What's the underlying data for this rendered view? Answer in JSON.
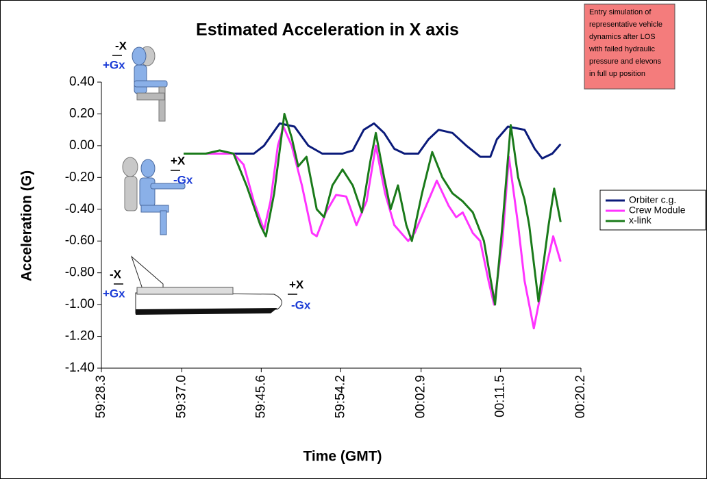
{
  "chart_data": {
    "type": "line",
    "title": "Estimated Acceleration in X axis",
    "x_label": "Time (GMT)",
    "y_label": "Acceleration (G)",
    "note": [
      "Entry simulation of",
      "representative vehicle",
      "dynamics after LOS",
      "with failed hydraulic",
      "pressure and elevons",
      "in full up position"
    ],
    "annotations": [
      "-X",
      "+Gx",
      "+X",
      "-Gx",
      "-X",
      "+Gx",
      "+X",
      "-Gx"
    ],
    "xlim": [
      "59:28.3",
      "00:20.2"
    ],
    "xticks": [
      "59:28.3",
      "59:37.0",
      "59:45.6",
      "59:54.2",
      "00:02.9",
      "00:11.5",
      "00:20.2"
    ],
    "ylim": [
      -1.4,
      0.4
    ],
    "yticks": [
      {
        "value": 0.4,
        "label": "0.40"
      },
      {
        "value": 0.2,
        "label": "0.20"
      },
      {
        "value": 0,
        "label": "0.00"
      },
      {
        "value": -0.2,
        "label": "-0.20"
      },
      {
        "value": -0.4,
        "label": "-0.40"
      },
      {
        "value": -0.6,
        "label": "-0.60"
      },
      {
        "value": -0.8,
        "label": "-0.80"
      },
      {
        "value": -1.0,
        "label": "-1.00"
      },
      {
        "value": -1.2,
        "label": "-1.20"
      },
      {
        "value": -1.4,
        "label": "-1.40"
      }
    ],
    "grid": false,
    "legend": "right",
    "series": [
      {
        "name": "Orbiter c.g.",
        "color": "#0a1a7a",
        "x": [
          "59:37.2",
          "59:44.8",
          "59:45.9",
          "59:47.6",
          "59:49.2",
          "59:50.7",
          "59:52.2",
          "59:54.4",
          "59:55.5",
          "59:56.7",
          "59:57.8",
          "59:58.9",
          "00:00.0",
          "00:01.1",
          "00:02.6",
          "00:03.7",
          "00:04.8",
          "00:06.3",
          "00:07.8",
          "00:09.3",
          "00:10.4",
          "00:11.1",
          "00:12.3",
          "00:14.1",
          "00:15.2",
          "00:16.0",
          "00:17.1",
          "00:18.0"
        ],
        "values": [
          -0.05,
          -0.05,
          0.0,
          0.14,
          0.12,
          0.0,
          -0.05,
          -0.05,
          -0.03,
          0.1,
          0.14,
          0.08,
          -0.02,
          -0.05,
          -0.05,
          0.04,
          0.1,
          0.08,
          0.0,
          -0.07,
          -0.07,
          0.04,
          0.12,
          0.1,
          -0.02,
          -0.08,
          -0.05,
          0.01
        ]
      },
      {
        "name": "Crew Module",
        "color": "#ff33ff",
        "x": [
          "59:37.2",
          "59:42.6",
          "59:43.7",
          "59:44.8",
          "59:45.9",
          "59:46.6",
          "59:47.4",
          "59:48.0",
          "59:48.9",
          "59:50.0",
          "59:51.1",
          "59:51.6",
          "59:52.6",
          "59:53.7",
          "59:54.8",
          "59:55.9",
          "59:57.0",
          "59:58.0",
          "59:59.0",
          "00:00.0",
          "00:01.5",
          "00:02.2",
          "00:04.6",
          "00:05.9",
          "00:06.7",
          "00:07.4",
          "00:08.5",
          "00:09.3",
          "00:10.2",
          "00:10.8",
          "00:11.7",
          "00:12.4",
          "00:13.4",
          "00:14.1",
          "00:15.1",
          "00:16.3",
          "00:17.2",
          "00:18.0"
        ],
        "values": [
          -0.05,
          -0.05,
          -0.12,
          -0.35,
          -0.53,
          -0.35,
          0.0,
          0.12,
          0.0,
          -0.25,
          -0.55,
          -0.57,
          -0.42,
          -0.31,
          -0.32,
          -0.5,
          -0.35,
          0.0,
          -0.3,
          -0.5,
          -0.6,
          -0.55,
          -0.22,
          -0.38,
          -0.45,
          -0.42,
          -0.55,
          -0.6,
          -0.85,
          -1.0,
          -0.6,
          -0.07,
          -0.5,
          -0.85,
          -1.15,
          -0.8,
          -0.57,
          -0.73
        ]
      },
      {
        "name": "x-link",
        "color": "#1a7a1a",
        "x": [
          "59:37.2",
          "59:39.6",
          "59:41.1",
          "59:42.6",
          "59:44.0",
          "59:45.5",
          "59:46.1",
          "59:47.0",
          "59:48.1",
          "59:48.9",
          "59:49.6",
          "59:50.5",
          "59:51.6",
          "59:52.4",
          "59:53.3",
          "59:54.4",
          "59:55.5",
          "59:56.5",
          "59:57.4",
          "59:58.0",
          "59:58.9",
          "59:59.6",
          "00:00.4",
          "00:01.3",
          "00:01.9",
          "00:03.0",
          "00:04.1",
          "00:05.2",
          "00:06.3",
          "00:07.4",
          "00:08.5",
          "00:09.7",
          "00:10.9",
          "00:11.7",
          "00:12.6",
          "00:13.4",
          "00:14.1",
          "00:14.6",
          "00:15.6",
          "00:16.7",
          "00:17.3",
          "00:18.0"
        ],
        "values": [
          -0.05,
          -0.05,
          -0.03,
          -0.05,
          -0.25,
          -0.5,
          -0.57,
          -0.3,
          0.2,
          0.05,
          -0.13,
          -0.07,
          -0.4,
          -0.45,
          -0.25,
          -0.15,
          -0.25,
          -0.42,
          -0.1,
          0.08,
          -0.2,
          -0.4,
          -0.25,
          -0.5,
          -0.6,
          -0.3,
          -0.04,
          -0.2,
          -0.3,
          -0.35,
          -0.42,
          -0.6,
          -1.0,
          -0.5,
          0.13,
          -0.2,
          -0.34,
          -0.5,
          -0.98,
          -0.5,
          -0.27,
          -0.48
        ]
      }
    ]
  }
}
